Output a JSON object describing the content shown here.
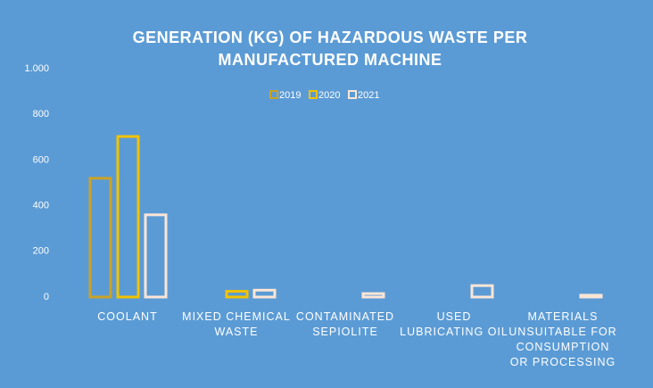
{
  "chart_data": {
    "type": "bar",
    "title": "GENERATION (KG) OF HAZARDOUS WASTE PER MANUFACTURED MACHINE",
    "categories": [
      "COOLANT",
      "MIXED CHEMICAL WASTE",
      "CONTAMINATED SEPIOLITE",
      "USED LUBRICATING OIL",
      "MATERIALS UNSUITABLE FOR CONSUMPTION OR PROCESSING"
    ],
    "series": [
      {
        "name": "2019",
        "color": "#c9a227",
        "values": [
          520,
          null,
          null,
          null,
          null
        ]
      },
      {
        "name": "2020",
        "color": "#f2c200",
        "values": [
          703,
          25,
          null,
          null,
          null
        ]
      },
      {
        "name": "2021",
        "color": "#fbe5d6",
        "values": [
          360,
          30,
          15,
          50,
          8
        ]
      }
    ],
    "ylim": [
      0,
      1000
    ],
    "yticks": [
      0,
      200,
      400,
      600,
      800,
      {
        "value": 1000,
        "label": "1.000"
      }
    ],
    "legend": "top"
  }
}
